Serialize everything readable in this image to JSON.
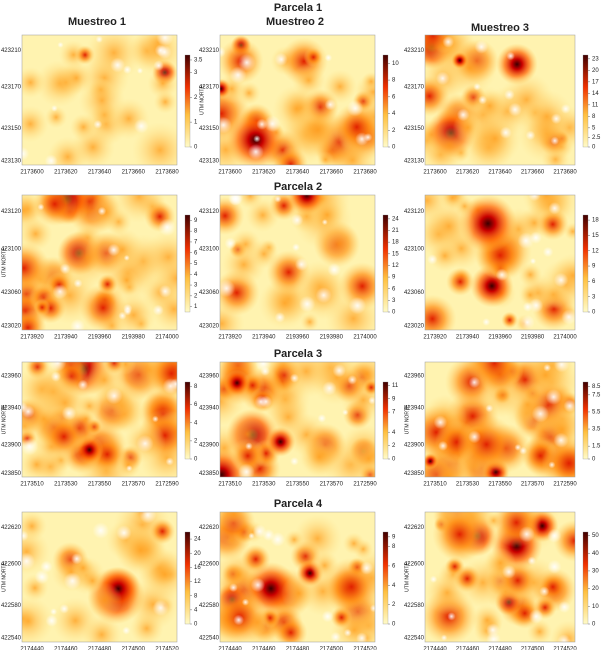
{
  "figure": {
    "title": "Parcela 1",
    "columns": [
      "Muestreo 1",
      "Muestreo 2",
      "Muestreo 3"
    ],
    "rows": [
      {
        "title": null,
        "panels": [
          {
            "type": "heatmap",
            "xticks": [
              "2173600",
              "2173620",
              "2173640",
              "2173660",
              "2173680"
            ],
            "yticks": [
              "423210",
              "423170",
              "423150",
              "423130"
            ],
            "cticks": [
              0,
              1,
              2,
              3,
              3.5
            ],
            "clim": [
              0,
              3.7
            ]
          },
          {
            "type": "heatmap",
            "ylabel": "UTM NORTE",
            "xticks": [
              "2173600",
              "2173620",
              "2173640",
              "2173660",
              "2173680"
            ],
            "yticks": [
              "423210",
              "423170",
              "423150",
              "423130"
            ],
            "cticks": [
              0,
              2,
              4,
              6,
              8,
              10
            ],
            "clim": [
              0,
              11
            ]
          },
          {
            "type": "heatmap",
            "xticks": [
              "2173600",
              "2173620",
              "2173640",
              "2173660",
              "2173680"
            ],
            "yticks": [
              "423210",
              "423170",
              "423150",
              "423130"
            ],
            "cticks": [
              0,
              2.5,
              5,
              8,
              11,
              14,
              17,
              20,
              23
            ],
            "clim": [
              0,
              24
            ]
          }
        ]
      },
      {
        "title": "Parcela 2",
        "panels": [
          {
            "type": "heatmap",
            "ylabel": "UTM NORTE",
            "xticks": [
              "2173920",
              "2173940",
              "2193960",
              "2193980",
              "2174000"
            ],
            "yticks": [
              "423120",
              "423100",
              "423060",
              "423020"
            ],
            "cticks": [
              1,
              2,
              3,
              4,
              5,
              6,
              7,
              8,
              9
            ],
            "clim": [
              0.5,
              9.5
            ]
          },
          {
            "type": "heatmap",
            "xticks": [
              "2173920",
              "2173940",
              "2193960",
              "2193980",
              "2174000"
            ],
            "yticks": [
              "423120",
              "423100",
              "423060",
              "423020"
            ],
            "cticks": [
              0,
              3,
              6,
              9,
              12,
              15,
              18,
              21,
              24
            ],
            "clim": [
              0,
              25
            ]
          },
          {
            "type": "heatmap",
            "xticks": [
              "2173920",
              "2173940",
              "2193960",
              "2193980",
              "2174000"
            ],
            "yticks": [
              "423120",
              "423100",
              "423060",
              "423020"
            ],
            "cticks": [
              0,
              3,
              6,
              9,
              12,
              15,
              18
            ],
            "clim": [
              0,
              19
            ]
          }
        ]
      },
      {
        "title": "Parcela 3",
        "panels": [
          {
            "type": "heatmap",
            "ylabel": "UTM NORTE",
            "xticks": [
              "2173510",
              "2173530",
              "2173550",
              "2173570",
              "2172590"
            ],
            "yticks": [
              "423960",
              "423940",
              "423900",
              "423850"
            ],
            "cticks": [
              0,
              2,
              4,
              6,
              8
            ],
            "clim": [
              0,
              8.5
            ]
          },
          {
            "type": "heatmap",
            "xticks": [
              "2173510",
              "2173530",
              "2173550",
              "2173570",
              "2172590"
            ],
            "yticks": [
              "423960",
              "423940",
              "423900",
              "423850"
            ],
            "cticks": [
              0,
              2,
              4,
              7,
              9,
              11
            ],
            "clim": [
              0,
              11.5
            ]
          },
          {
            "type": "heatmap",
            "ylabel": "UTM NORTE",
            "xticks": [
              "2173510",
              "2173530",
              "2173550",
              "2173570",
              "2172590"
            ],
            "yticks": [
              "423960",
              "423940",
              "423900",
              "423850"
            ],
            "cticks": [
              0,
              1.5,
              3.5,
              5.5,
              7.5,
              8.5
            ],
            "clim": [
              0,
              9
            ]
          }
        ]
      },
      {
        "title": "Parcela 4",
        "panels": [
          {
            "type": "heatmap",
            "ylabel": "UTM NORTE",
            "xticks": [
              "2174440",
              "2174460",
              "2174480",
              "2174500",
              "2174520"
            ],
            "yticks": [
              "422620",
              "422600",
              "422580",
              "422540"
            ],
            "cticks": [
              0,
              4,
              8,
              12,
              16,
              20,
              24
            ],
            "clim": [
              0,
              26
            ]
          },
          {
            "type": "heatmap",
            "xticks": [
              "2174440",
              "2174460",
              "2174480",
              "2174500",
              "2174520"
            ],
            "yticks": [
              "422620",
              "422600",
              "422580",
              "422540"
            ],
            "cticks": [
              0,
              2,
              4,
              6,
              8,
              9
            ],
            "clim": [
              0,
              9.5
            ]
          },
          {
            "type": "heatmap",
            "ylabel": "UTM NORTE",
            "xticks": [
              "2174440",
              "2174460",
              "2174480",
              "2174500",
              "2174520"
            ],
            "yticks": [
              "422620",
              "422600",
              "422580",
              "422540"
            ],
            "cticks": [
              0,
              10,
              20,
              30,
              40,
              50
            ],
            "clim": [
              0,
              52
            ]
          }
        ]
      }
    ]
  }
}
